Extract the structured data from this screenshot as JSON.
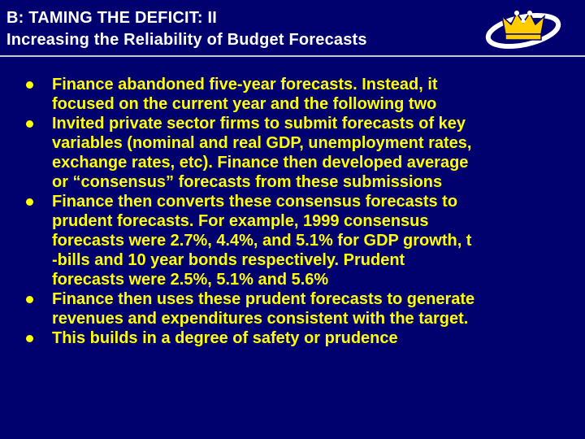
{
  "slide": {
    "title_line1": "B: TAMING THE DEFICIT: II",
    "title_line2": "Increasing the Reliability of Budget Forecasts",
    "logo_icon": "crown-logo-icon",
    "accent_color": "#ffff00",
    "background_color": "#00006e"
  },
  "bullets": [
    {
      "lines": [
        "Finance abandoned five-year forecasts. Instead, it",
        "focused on the current year and the following two"
      ]
    },
    {
      "lines": [
        "Invited private sector firms to submit forecasts of key",
        "variables (nominal and real GDP, unemployment rates,",
        "exchange rates, etc). Finance then developed average",
        "or “consensus” forecasts from these submissions"
      ]
    },
    {
      "lines": [
        "Finance then converts these consensus forecasts to",
        "prudent forecasts. For example, 1999 consensus",
        "forecasts were 2.7%, 4.4%, and 5.1% for GDP growth, t",
        "-bills and 10 year bonds respectively. Prudent",
        "forecasts were 2.5%, 5.1% and 5.6%"
      ]
    },
    {
      "lines": [
        "Finance then uses these prudent forecasts to generate",
        "revenues and expenditures consistent with the target."
      ]
    },
    {
      "lines": [
        "This builds in a degree of safety or prudence"
      ]
    }
  ]
}
